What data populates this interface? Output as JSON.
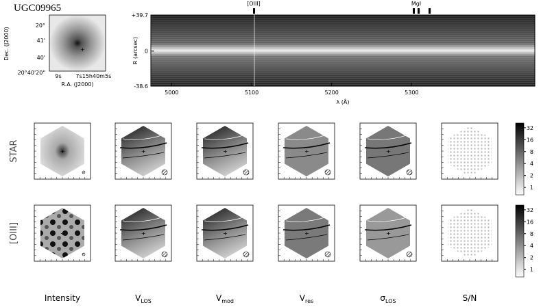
{
  "title": "UGC09965",
  "image": {
    "y_label": "Dec. (J2000)",
    "x_label": "R.A. (J2000)",
    "y_tick_labels": [
      "20°",
      "41'",
      "40'",
      "20°40'20\""
    ],
    "x_tick_labels": [
      "9s",
      "7s",
      "15h40m5s"
    ]
  },
  "spectrum": {
    "x_label": "λ (Å)",
    "y_label": "R (arcsec)",
    "xlim": [
      4974,
      5454
    ],
    "xticks": [
      5000,
      5100,
      5200,
      5300
    ],
    "ylim": [
      -38.6,
      39.7
    ],
    "yticks": [
      {
        "value": 39.7,
        "label": "+39.7"
      },
      0,
      -38.6
    ],
    "line_labels": [
      "[OIII]",
      "MgI"
    ]
  },
  "rows": [
    "STAR",
    "[OIII]"
  ],
  "columns": [
    {
      "main": "Intensity"
    },
    {
      "main": "V",
      "sub": "LOS"
    },
    {
      "main": "V",
      "sub": "mod"
    },
    {
      "main": "V",
      "sub": "res"
    },
    {
      "main": "σ",
      "sub": "LOS"
    },
    {
      "main": "S/N"
    }
  ],
  "colorbar": {
    "log": true,
    "lim": [
      0.65,
      42
    ],
    "ticks": [
      1,
      2,
      4,
      8,
      16,
      32
    ]
  }
}
